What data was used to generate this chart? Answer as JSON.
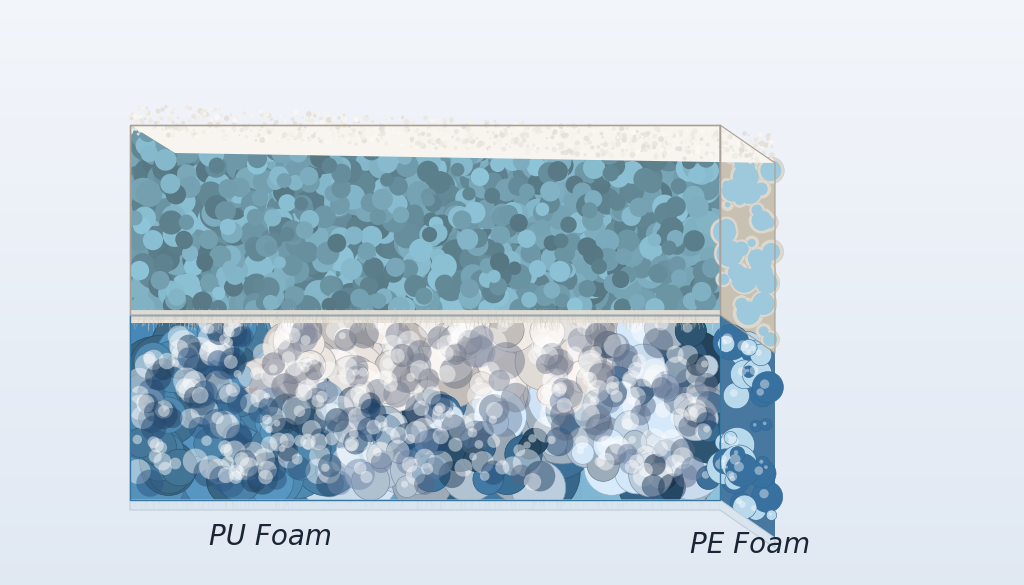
{
  "bg_color_top": "#f0f4f8",
  "bg_color_bottom": "#dce8f2",
  "bg_center": "#eef2f8",
  "pu_wall_color": "#ede8e0",
  "pu_wall_dark": "#d8d0c4",
  "pu_cell_color": "#8ec4d8",
  "pu_cell_dark": "#5a9ab8",
  "pu_top_color": "#f8f5f0",
  "pu_side_color": "#c8c0b4",
  "pe_bg_color": "#5a9ec8",
  "pe_bg_left": "#4888b8",
  "pe_cell_light": "#d8ecf8",
  "pe_cell_white": "#eef5fc",
  "pe_cell_blue": "#3878a8",
  "pe_cell_mid": "#6aaed0",
  "pe_bottom_color": "#e8eef4",
  "sep_color": "#e0dbd2",
  "label_pu": "PU Foam",
  "label_pe": "PE Foam",
  "label_color": "#1a2535",
  "label_fontsize": 20,
  "seed_pu": 42,
  "seed_pe": 77,
  "seed_bg": 11
}
